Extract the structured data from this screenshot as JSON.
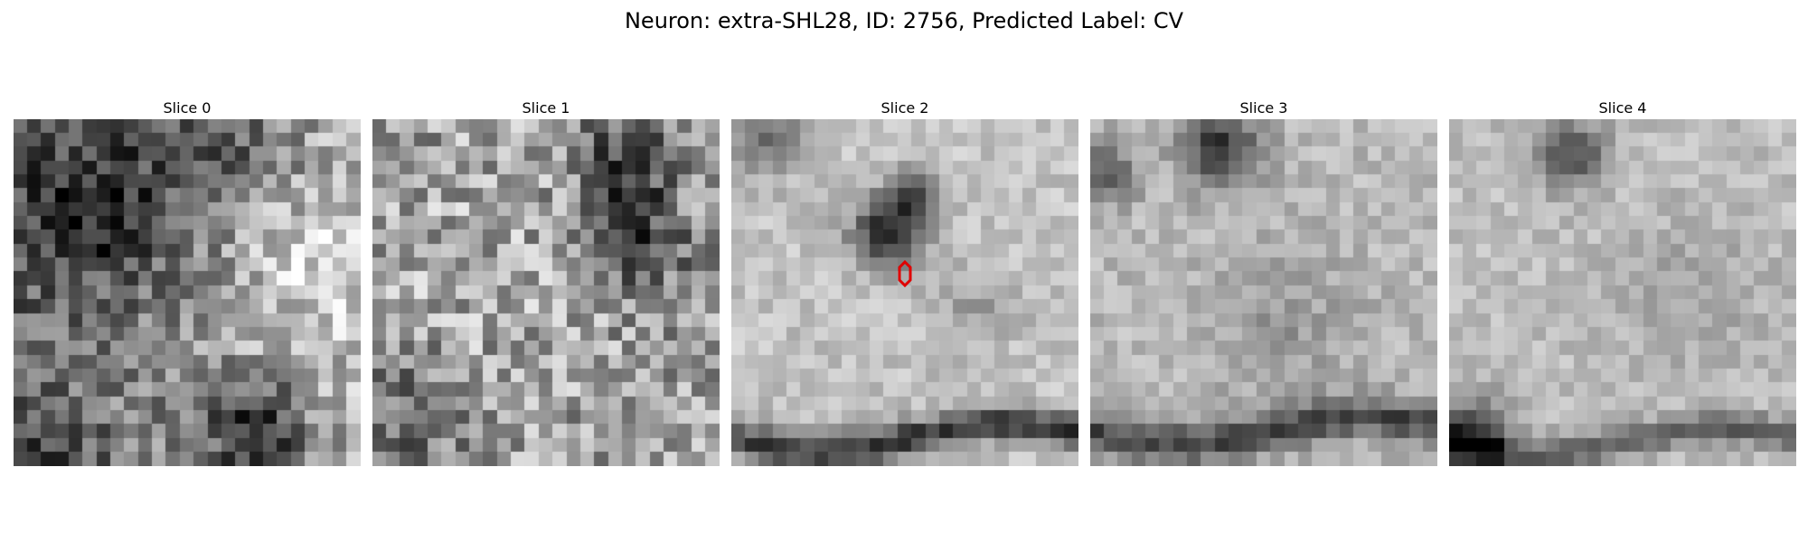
{
  "figure": {
    "title": "Neuron: extra-SHL28, ID: 2756, Predicted Label: CV"
  },
  "panels": [
    {
      "label": "Slice 0"
    },
    {
      "label": "Slice 1"
    },
    {
      "label": "Slice 2",
      "marker": true
    },
    {
      "label": "Slice 3"
    },
    {
      "label": "Slice 4"
    }
  ],
  "colors": {
    "marker": "#e00000",
    "colormap": "grayscale"
  }
}
